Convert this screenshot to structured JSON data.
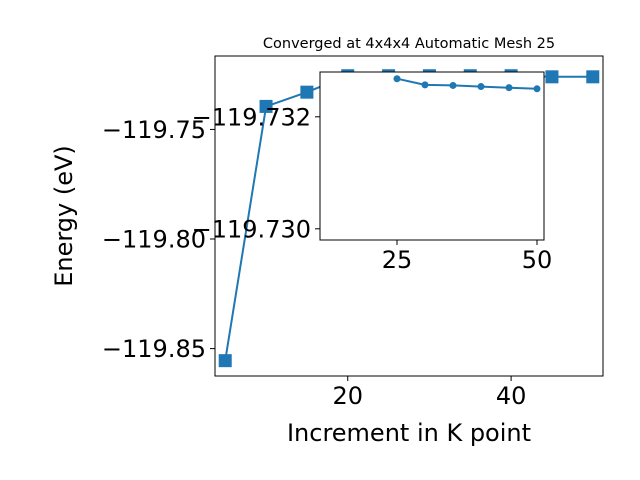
{
  "chart_data": [
    {
      "type": "line",
      "title": "Converged at 4x4x4 Automatic Mesh 25",
      "xlabel": "Increment in K point",
      "ylabel": "Energy (eV)",
      "xlim": [
        3.75,
        51.25
      ],
      "ylim": [
        -119.8625,
        -119.7165
      ],
      "xticks": [
        20,
        40
      ],
      "xtick_labels": [
        "20",
        "40"
      ],
      "yticks": [
        -119.85,
        -119.8,
        -119.75
      ],
      "ytick_labels": [
        "−119.85",
        "−119.80",
        "−119.75"
      ],
      "marker": "square",
      "color": "#1f77b4",
      "series": [
        {
          "x": [
            5,
            10,
            15,
            20,
            25,
            30,
            35,
            40,
            45,
            50
          ],
          "y": [
            -119.8555,
            -119.7395,
            -119.733,
            -119.7255,
            -119.7255,
            -119.7255,
            -119.7255,
            -119.7255,
            -119.726,
            -119.726
          ]
        }
      ]
    },
    {
      "type": "line",
      "inset": true,
      "xlim": [
        11.25,
        51.25
      ],
      "ylim": [
        -119.7298,
        -119.7328
      ],
      "xticks": [
        25,
        50
      ],
      "xtick_labels": [
        "25",
        "50"
      ],
      "yticks": [
        -119.732,
        -119.73
      ],
      "ytick_labels": [
        "−119.732",
        "−119.730"
      ],
      "marker": "circle",
      "color": "#1f77b4",
      "series": [
        {
          "x": [
            25,
            30,
            35,
            40,
            45,
            50
          ],
          "y": [
            -119.73268,
            -119.73257,
            -119.73256,
            -119.73254,
            -119.73252,
            -119.7325
          ]
        }
      ]
    }
  ]
}
